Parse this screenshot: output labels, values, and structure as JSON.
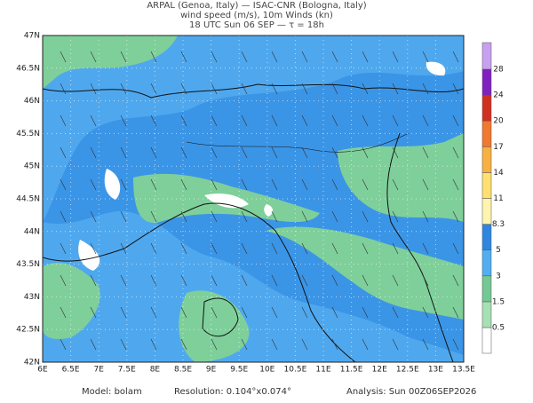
{
  "header": {
    "line1": "ARPAL (Genoa, Italy)  —  ISAC-CNR (Bologna, Italy)",
    "line2": "wind speed (m/s), 10m Winds (kn)",
    "line3": "18 UTC Sun 06 SEP  —  τ = 18h"
  },
  "lat_ticks": [
    "47N",
    "46.5N",
    "46N",
    "45.5N",
    "45N",
    "44.5N",
    "44N",
    "43.5N",
    "43N",
    "42.5N",
    "42N"
  ],
  "lon_ticks": [
    "6E",
    "6.5E",
    "7E",
    "7.5E",
    "8E",
    "8.5E",
    "9E",
    "9.5E",
    "10E",
    "10.5E",
    "11E",
    "11.5E",
    "12E",
    "12.5E",
    "13E",
    "13.5E"
  ],
  "colorbar": [
    "0.5",
    "1.5",
    "3",
    "5",
    "8.3",
    "11",
    "14",
    "17",
    "20",
    "24",
    "28"
  ],
  "footer": {
    "model": "Model: bolam",
    "resolution": "Resolution: 0.104°x0.074°",
    "analysis": "Analysis: Sun 00Z06SEP2026"
  }
}
